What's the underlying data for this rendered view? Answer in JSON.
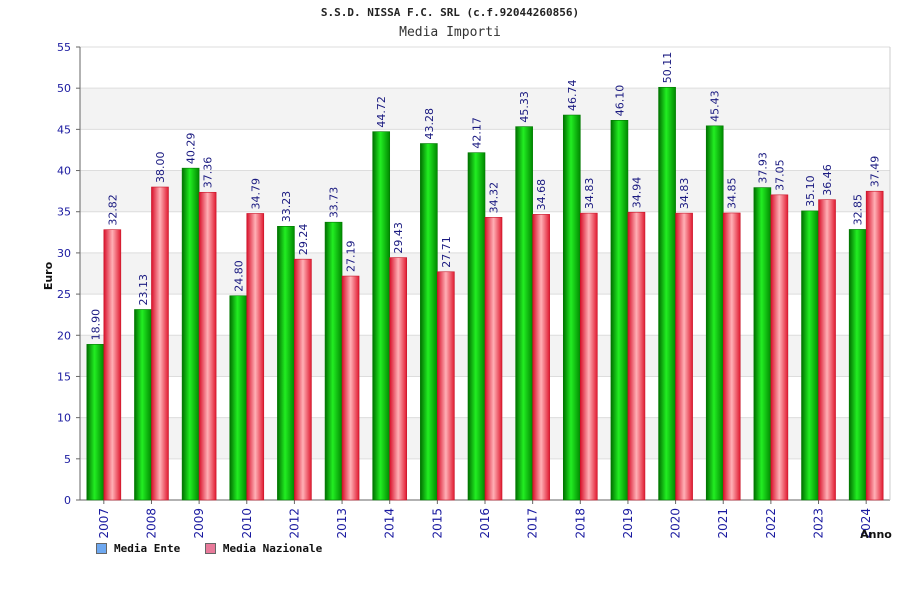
{
  "chart_data": {
    "type": "bar",
    "title": "S.S.D. NISSA F.C. SRL (c.f.92044260856)",
    "subtitle": "Media Importi",
    "xlabel": "Anno",
    "ylabel": "Euro",
    "ylim": [
      0,
      55
    ],
    "ytick_step": 5,
    "grid": true,
    "legend_position": "bottom-left",
    "categories": [
      "2007",
      "2008",
      "2009",
      "2010",
      "2012",
      "2013",
      "2014",
      "2015",
      "2016",
      "2017",
      "2018",
      "2019",
      "2020",
      "2021",
      "2022",
      "2023",
      "2024"
    ],
    "series": [
      {
        "name": "Media Ente",
        "color": "#00c000",
        "legend_color": "#6ea8f0",
        "values": [
          18.9,
          23.13,
          40.29,
          24.8,
          33.23,
          33.73,
          44.72,
          43.28,
          42.17,
          45.33,
          46.74,
          46.1,
          50.11,
          45.43,
          37.93,
          35.1,
          32.85
        ],
        "labels": [
          "18.90",
          "23.13",
          "40.29",
          "24.80",
          "33.23",
          "33.73",
          "44.72",
          "43.28",
          "42.17",
          "45.33",
          "46.74",
          "46.10",
          "50.11",
          "45.43",
          "37.93",
          "35.10",
          "32.85"
        ]
      },
      {
        "name": "Media Nazionale",
        "color": "#f03a4a",
        "legend_color": "#e87a9a",
        "values": [
          32.82,
          38.0,
          37.36,
          34.79,
          29.24,
          27.19,
          29.43,
          27.71,
          34.32,
          34.68,
          34.83,
          34.94,
          34.83,
          34.85,
          37.05,
          36.46,
          37.49
        ],
        "labels": [
          "32.82",
          "38.00",
          "37.36",
          "34.79",
          "29.24",
          "27.19",
          "29.43",
          "27.71",
          "34.32",
          "34.68",
          "34.83",
          "34.94",
          "34.83",
          "34.85",
          "37.05",
          "36.46",
          "37.49"
        ]
      }
    ]
  }
}
